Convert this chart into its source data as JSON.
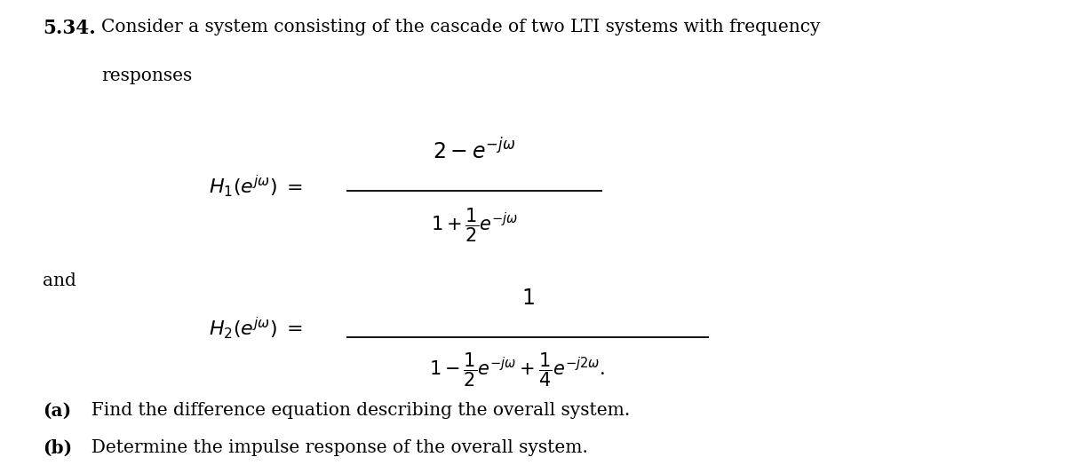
{
  "background_color": "#ffffff",
  "problem_number": "5.34.",
  "intro_line1": "Consider a system consisting of the cascade of two LTI systems with frequency",
  "intro_line2": "responses",
  "and_text": "and",
  "part_a_bold": "(a)",
  "part_a_rest": "  Find the difference equation describing the overall system.",
  "part_b_bold": "(b)",
  "part_b_rest": "  Determine the impulse response of the overall system.",
  "H1_label": "$H_1(e^{j\\omega}) \\ = $",
  "H1_num": "$2 - e^{-j\\omega}$",
  "H1_den": "$1 + \\dfrac{1}{2}e^{-j\\omega}$",
  "H2_label": "$H_2(e^{j\\omega}) \\ = $",
  "H2_num": "$1$",
  "H2_den": "$1 - \\dfrac{1}{2}e^{-j\\omega} + \\dfrac{1}{4}e^{-j2\\omega}$",
  "fs_title": 15.5,
  "fs_body": 14.5,
  "fs_math": 15,
  "fs_parts": 14.5
}
